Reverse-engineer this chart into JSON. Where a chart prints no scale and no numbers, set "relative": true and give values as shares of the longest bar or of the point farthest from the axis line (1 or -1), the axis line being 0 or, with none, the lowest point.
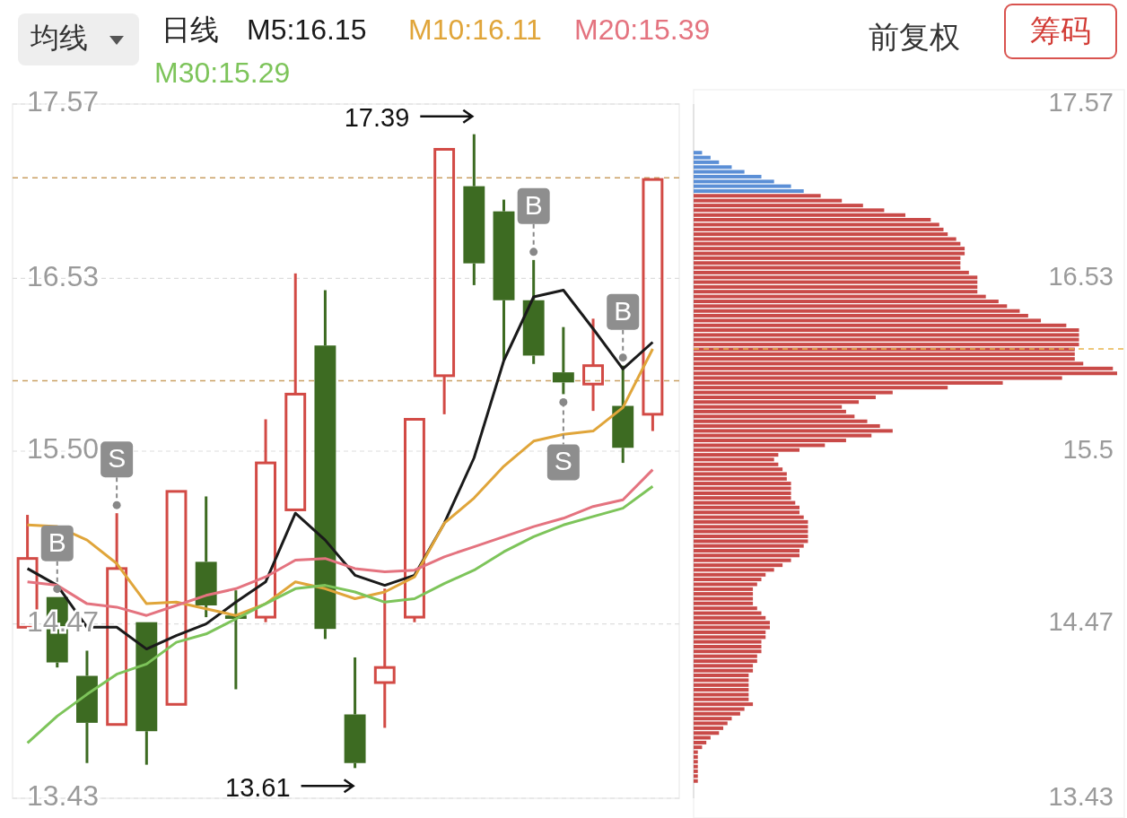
{
  "chart_data": [
    {
      "type": "candlestick",
      "title": "日线",
      "legend": "top",
      "grid": "y",
      "categories": [
        null,
        null,
        null,
        null,
        null,
        null,
        null,
        null,
        null,
        null,
        null,
        null,
        null,
        null,
        null,
        null,
        null,
        null,
        null,
        null,
        null,
        null
      ],
      "ohlc": [
        [
          14.45,
          15.12,
          14.45,
          14.86
        ],
        [
          14.63,
          14.63,
          14.21,
          14.24
        ],
        [
          14.16,
          14.31,
          13.64,
          13.88
        ],
        [
          13.87,
          15.13,
          13.87,
          14.8
        ],
        [
          14.48,
          14.48,
          13.63,
          13.83
        ],
        [
          13.99,
          15.26,
          13.99,
          15.26
        ],
        [
          14.84,
          15.23,
          14.51,
          14.58
        ],
        [
          14.52,
          14.67,
          14.08,
          14.5
        ],
        [
          14.51,
          15.69,
          14.48,
          15.43
        ],
        [
          15.15,
          16.56,
          15.15,
          15.84
        ],
        [
          16.13,
          16.46,
          14.38,
          14.44
        ],
        [
          13.93,
          14.27,
          13.61,
          13.64
        ],
        [
          14.12,
          14.68,
          13.85,
          14.21
        ],
        [
          14.51,
          15.69,
          14.48,
          15.69
        ],
        [
          15.95,
          17.3,
          15.72,
          17.3
        ],
        [
          17.08,
          17.39,
          16.49,
          16.62
        ],
        [
          16.93,
          17.0,
          16.04,
          16.4
        ],
        [
          16.4,
          16.64,
          16.02,
          16.07
        ],
        [
          15.97,
          16.24,
          15.84,
          15.91
        ],
        [
          15.9,
          16.29,
          15.74,
          16.01
        ],
        [
          15.77,
          16.01,
          15.43,
          15.52
        ],
        [
          15.72,
          17.12,
          15.62,
          17.12
        ]
      ],
      "series": [
        {
          "name": "M5:16.15",
          "type": "line",
          "color": "#1a1a1a",
          "values": [
            14.8,
            14.7,
            14.45,
            14.45,
            14.32,
            14.4,
            14.47,
            14.6,
            14.72,
            15.13,
            14.97,
            14.76,
            14.7,
            14.76,
            15.07,
            15.46,
            16.04,
            16.42,
            16.46,
            16.23,
            15.99,
            16.15
          ]
        },
        {
          "name": "M10:16.11",
          "type": "line",
          "color": "#e0a53a",
          "values": [
            15.06,
            15.05,
            14.97,
            14.83,
            14.59,
            14.6,
            14.56,
            14.52,
            14.59,
            14.72,
            14.68,
            14.62,
            14.66,
            14.75,
            15.07,
            15.22,
            15.41,
            15.56,
            15.6,
            15.62,
            15.76,
            16.11
          ]
        },
        {
          "name": "M20:15.39",
          "type": "line",
          "color": "#e4737f",
          "values": [
            14.72,
            14.7,
            14.59,
            14.57,
            14.52,
            14.58,
            14.64,
            14.68,
            14.75,
            14.85,
            14.86,
            14.8,
            14.78,
            14.79,
            14.87,
            14.93,
            14.99,
            15.05,
            15.1,
            15.17,
            15.21,
            15.39
          ]
        },
        {
          "name": "M30:15.29",
          "type": "line",
          "color": "#7dc45a",
          "values": [
            13.76,
            13.92,
            14.05,
            14.17,
            14.23,
            14.36,
            14.41,
            14.5,
            14.59,
            14.68,
            14.7,
            14.66,
            14.6,
            14.62,
            14.71,
            14.79,
            14.9,
            14.99,
            15.06,
            15.11,
            15.16,
            15.29
          ]
        }
      ],
      "ylim": [
        13.43,
        17.57
      ],
      "yticks": [
        17.57,
        16.53,
        {
          "value": 15.5,
          "label": "15.50"
        },
        14.47,
        13.43
      ],
      "ref_lines": [
        {
          "axis": "y",
          "value": 17.13,
          "color": "#c9a063",
          "line_style": "dashed"
        },
        {
          "axis": "y",
          "value": 15.92,
          "color": "#c9a063",
          "line_style": "dashed"
        }
      ],
      "annotations": [
        "均线",
        "前复权",
        "筹码",
        "17.39",
        "13.61",
        {
          "text": "B",
          "y": 14.63
        },
        {
          "text": "S",
          "y": 15.13
        },
        {
          "text": "B",
          "y": 16.64
        },
        {
          "text": "S",
          "y": 15.84
        },
        {
          "text": "B",
          "y": 16.01
        }
      ]
    },
    {
      "type": "bar",
      "orientation": "horizontal",
      "relative": true,
      "tick_labels": "y",
      "series": [
        {
          "color": "#5b8fd6",
          "x": [
            17.28,
            17.251,
            17.223,
            17.194,
            17.166,
            17.137,
            17.108,
            17.08,
            17.051
          ],
          "values": [
            0.02,
            0.04,
            0.06,
            0.09,
            0.12,
            0.16,
            0.19,
            0.23,
            0.26
          ]
        },
        {
          "color": "#c94a48",
          "x": [
            17.023,
            16.994,
            16.965,
            16.937,
            16.908,
            16.88,
            16.851,
            16.822,
            16.794,
            16.765,
            16.737,
            16.708,
            16.679,
            16.651,
            16.622,
            16.594,
            16.565,
            16.536,
            16.508,
            16.479,
            16.451,
            16.422,
            16.393,
            16.365,
            16.336,
            16.308,
            16.279,
            16.25,
            16.222,
            16.193,
            16.165,
            16.136,
            16.107,
            16.079,
            16.05,
            16.022,
            15.993,
            15.964,
            15.936,
            15.907,
            15.879,
            15.85,
            15.821,
            15.793,
            15.764,
            15.736,
            15.707,
            15.678,
            15.65,
            15.621,
            15.593,
            15.564,
            15.535,
            15.507,
            15.478,
            15.45,
            15.421,
            15.392,
            15.364,
            15.335,
            15.307,
            15.278,
            15.249,
            15.221,
            15.192,
            15.164,
            15.135,
            15.106,
            15.078,
            15.049,
            15.021,
            14.992,
            14.963,
            14.935,
            14.906,
            14.878,
            14.849,
            14.82,
            14.792,
            14.763,
            14.735,
            14.706,
            14.677,
            14.649,
            14.62,
            14.592,
            14.563,
            14.534,
            14.506,
            14.477,
            14.449,
            14.42,
            14.391,
            14.363,
            14.334,
            14.306,
            14.277,
            14.248,
            14.22,
            14.191,
            14.163,
            14.134,
            14.105,
            14.077,
            14.048,
            14.02,
            13.991,
            13.962,
            13.934,
            13.905,
            13.877,
            13.848,
            13.819,
            13.791,
            13.762,
            13.734,
            13.705,
            13.676,
            13.648,
            13.619,
            13.591,
            13.562,
            13.533
          ],
          "values": [
            0.3,
            0.35,
            0.4,
            0.45,
            0.5,
            0.56,
            0.58,
            0.59,
            0.6,
            0.62,
            0.63,
            0.64,
            0.64,
            0.63,
            0.63,
            0.63,
            0.65,
            0.67,
            0.67,
            0.67,
            0.67,
            0.69,
            0.72,
            0.74,
            0.77,
            0.79,
            0.82,
            0.88,
            0.91,
            0.91,
            0.91,
            0.91,
            0.9,
            0.9,
            0.9,
            0.92,
            0.99,
            1.0,
            0.87,
            0.73,
            0.6,
            0.47,
            0.43,
            0.39,
            0.35,
            0.36,
            0.38,
            0.41,
            0.44,
            0.47,
            0.42,
            0.36,
            0.31,
            0.25,
            0.2,
            0.19,
            0.2,
            0.21,
            0.22,
            0.22,
            0.23,
            0.23,
            0.23,
            0.23,
            0.24,
            0.25,
            0.25,
            0.26,
            0.27,
            0.27,
            0.27,
            0.27,
            0.27,
            0.26,
            0.25,
            0.25,
            0.23,
            0.21,
            0.19,
            0.17,
            0.16,
            0.15,
            0.14,
            0.14,
            0.14,
            0.14,
            0.15,
            0.16,
            0.17,
            0.18,
            0.18,
            0.17,
            0.17,
            0.16,
            0.16,
            0.16,
            0.15,
            0.15,
            0.14,
            0.14,
            0.13,
            0.13,
            0.13,
            0.13,
            0.13,
            0.13,
            0.14,
            0.12,
            0.11,
            0.09,
            0.08,
            0.07,
            0.06,
            0.04,
            0.03,
            0.02,
            0.01,
            0.01,
            0.01,
            0.01,
            0.01,
            0.01,
            0.01
          ]
        }
      ],
      "ylim": [
        13.43,
        17.57
      ],
      "yticks": [
        17.57,
        16.53,
        15.5,
        14.47,
        13.43
      ],
      "ref_lines": [
        {
          "axis": "y",
          "value": 16.11,
          "color": "#e8b44c",
          "line_style": "dashed"
        }
      ]
    }
  ]
}
